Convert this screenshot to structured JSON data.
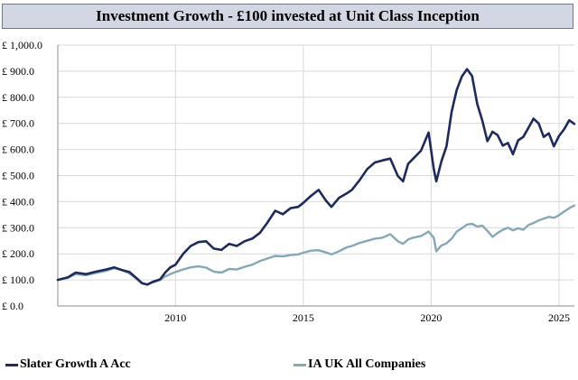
{
  "chart_data": {
    "type": "line",
    "title": "Investment Growth - £100 invested at Unit Class Inception",
    "xlabel": "",
    "ylabel": "",
    "xlim": [
      2005.4,
      2025.6
    ],
    "ylim": [
      0,
      1000
    ],
    "x_ticks": [
      {
        "value": 2010,
        "label": "2010"
      },
      {
        "value": 2015,
        "label": "2015"
      },
      {
        "value": 2020,
        "label": "2020"
      },
      {
        "value": 2025,
        "label": "2025"
      }
    ],
    "y_ticks": [
      {
        "value": 0,
        "label": "£ 0.0"
      },
      {
        "value": 100,
        "label": "£ 100.0"
      },
      {
        "value": 200,
        "label": "£ 200.0"
      },
      {
        "value": 300,
        "label": "£ 300.0"
      },
      {
        "value": 400,
        "label": "£ 400.0"
      },
      {
        "value": 500,
        "label": "£ 500.0"
      },
      {
        "value": 600,
        "label": "£ 600.0"
      },
      {
        "value": 700,
        "label": "£ 700.0"
      },
      {
        "value": 800,
        "label": "£ 800.0"
      },
      {
        "value": 900,
        "label": "£ 900.0"
      },
      {
        "value": 1000,
        "label": "£ 1,000.0"
      }
    ],
    "grid": {
      "horizontal": true,
      "vertical": true
    },
    "legend_position": "bottom",
    "series": [
      {
        "name": "Slater Growth A Acc",
        "color": "#1f2a5c",
        "points": [
          [
            2005.4,
            100
          ],
          [
            2005.8,
            110
          ],
          [
            2006.1,
            128
          ],
          [
            2006.5,
            122
          ],
          [
            2006.9,
            132
          ],
          [
            2007.3,
            140
          ],
          [
            2007.6,
            148
          ],
          [
            2007.9,
            138
          ],
          [
            2008.2,
            130
          ],
          [
            2008.5,
            105
          ],
          [
            2008.7,
            87
          ],
          [
            2008.9,
            82
          ],
          [
            2009.1,
            92
          ],
          [
            2009.4,
            102
          ],
          [
            2009.6,
            128
          ],
          [
            2009.8,
            148
          ],
          [
            2010.0,
            158
          ],
          [
            2010.3,
            200
          ],
          [
            2010.6,
            230
          ],
          [
            2010.9,
            245
          ],
          [
            2011.2,
            248
          ],
          [
            2011.5,
            220
          ],
          [
            2011.8,
            215
          ],
          [
            2012.1,
            238
          ],
          [
            2012.4,
            230
          ],
          [
            2012.7,
            248
          ],
          [
            2013.0,
            258
          ],
          [
            2013.3,
            280
          ],
          [
            2013.6,
            320
          ],
          [
            2013.9,
            365
          ],
          [
            2014.2,
            352
          ],
          [
            2014.5,
            375
          ],
          [
            2014.8,
            380
          ],
          [
            2015.0,
            395
          ],
          [
            2015.3,
            422
          ],
          [
            2015.6,
            445
          ],
          [
            2015.9,
            402
          ],
          [
            2016.1,
            380
          ],
          [
            2016.4,
            415
          ],
          [
            2016.7,
            432
          ],
          [
            2016.9,
            445
          ],
          [
            2017.2,
            482
          ],
          [
            2017.5,
            525
          ],
          [
            2017.8,
            550
          ],
          [
            2018.1,
            558
          ],
          [
            2018.4,
            565
          ],
          [
            2018.7,
            498
          ],
          [
            2018.9,
            478
          ],
          [
            2019.1,
            545
          ],
          [
            2019.3,
            565
          ],
          [
            2019.6,
            595
          ],
          [
            2019.9,
            665
          ],
          [
            2020.1,
            525
          ],
          [
            2020.2,
            478
          ],
          [
            2020.4,
            555
          ],
          [
            2020.6,
            612
          ],
          [
            2020.8,
            745
          ],
          [
            2021.0,
            828
          ],
          [
            2021.2,
            880
          ],
          [
            2021.4,
            908
          ],
          [
            2021.6,
            882
          ],
          [
            2021.8,
            775
          ],
          [
            2022.0,
            710
          ],
          [
            2022.2,
            632
          ],
          [
            2022.4,
            668
          ],
          [
            2022.6,
            655
          ],
          [
            2022.8,
            615
          ],
          [
            2023.0,
            625
          ],
          [
            2023.2,
            582
          ],
          [
            2023.4,
            635
          ],
          [
            2023.6,
            648
          ],
          [
            2023.8,
            682
          ],
          [
            2024.0,
            718
          ],
          [
            2024.2,
            700
          ],
          [
            2024.4,
            648
          ],
          [
            2024.6,
            662
          ],
          [
            2024.8,
            612
          ],
          [
            2025.0,
            652
          ],
          [
            2025.2,
            678
          ],
          [
            2025.4,
            712
          ],
          [
            2025.6,
            698
          ]
        ]
      },
      {
        "name": "IA UK All Companies",
        "color": "#86a8b5",
        "points": [
          [
            2005.4,
            100
          ],
          [
            2005.8,
            108
          ],
          [
            2006.1,
            122
          ],
          [
            2006.5,
            118
          ],
          [
            2006.9,
            127
          ],
          [
            2007.3,
            135
          ],
          [
            2007.6,
            145
          ],
          [
            2007.9,
            138
          ],
          [
            2008.2,
            125
          ],
          [
            2008.5,
            102
          ],
          [
            2008.7,
            88
          ],
          [
            2008.9,
            82
          ],
          [
            2009.1,
            90
          ],
          [
            2009.4,
            100
          ],
          [
            2009.6,
            113
          ],
          [
            2009.8,
            122
          ],
          [
            2010.0,
            130
          ],
          [
            2010.3,
            140
          ],
          [
            2010.6,
            148
          ],
          [
            2010.9,
            152
          ],
          [
            2011.2,
            147
          ],
          [
            2011.5,
            132
          ],
          [
            2011.8,
            128
          ],
          [
            2012.1,
            142
          ],
          [
            2012.4,
            140
          ],
          [
            2012.7,
            150
          ],
          [
            2013.0,
            158
          ],
          [
            2013.3,
            172
          ],
          [
            2013.6,
            182
          ],
          [
            2013.9,
            192
          ],
          [
            2014.2,
            190
          ],
          [
            2014.5,
            195
          ],
          [
            2014.8,
            198
          ],
          [
            2015.0,
            204
          ],
          [
            2015.3,
            212
          ],
          [
            2015.6,
            214
          ],
          [
            2015.9,
            205
          ],
          [
            2016.1,
            198
          ],
          [
            2016.4,
            210
          ],
          [
            2016.7,
            225
          ],
          [
            2016.9,
            230
          ],
          [
            2017.2,
            242
          ],
          [
            2017.5,
            250
          ],
          [
            2017.8,
            258
          ],
          [
            2018.1,
            262
          ],
          [
            2018.4,
            275
          ],
          [
            2018.7,
            248
          ],
          [
            2018.9,
            238
          ],
          [
            2019.1,
            255
          ],
          [
            2019.3,
            262
          ],
          [
            2019.6,
            268
          ],
          [
            2019.9,
            285
          ],
          [
            2020.1,
            262
          ],
          [
            2020.2,
            210
          ],
          [
            2020.4,
            232
          ],
          [
            2020.6,
            240
          ],
          [
            2020.8,
            258
          ],
          [
            2021.0,
            285
          ],
          [
            2021.2,
            298
          ],
          [
            2021.4,
            312
          ],
          [
            2021.6,
            315
          ],
          [
            2021.8,
            305
          ],
          [
            2022.0,
            308
          ],
          [
            2022.2,
            288
          ],
          [
            2022.4,
            265
          ],
          [
            2022.6,
            280
          ],
          [
            2022.8,
            292
          ],
          [
            2023.0,
            300
          ],
          [
            2023.2,
            290
          ],
          [
            2023.4,
            298
          ],
          [
            2023.6,
            292
          ],
          [
            2023.8,
            310
          ],
          [
            2024.0,
            318
          ],
          [
            2024.2,
            328
          ],
          [
            2024.4,
            335
          ],
          [
            2024.6,
            342
          ],
          [
            2024.8,
            338
          ],
          [
            2025.0,
            348
          ],
          [
            2025.2,
            362
          ],
          [
            2025.4,
            375
          ],
          [
            2025.6,
            385
          ]
        ]
      }
    ]
  }
}
